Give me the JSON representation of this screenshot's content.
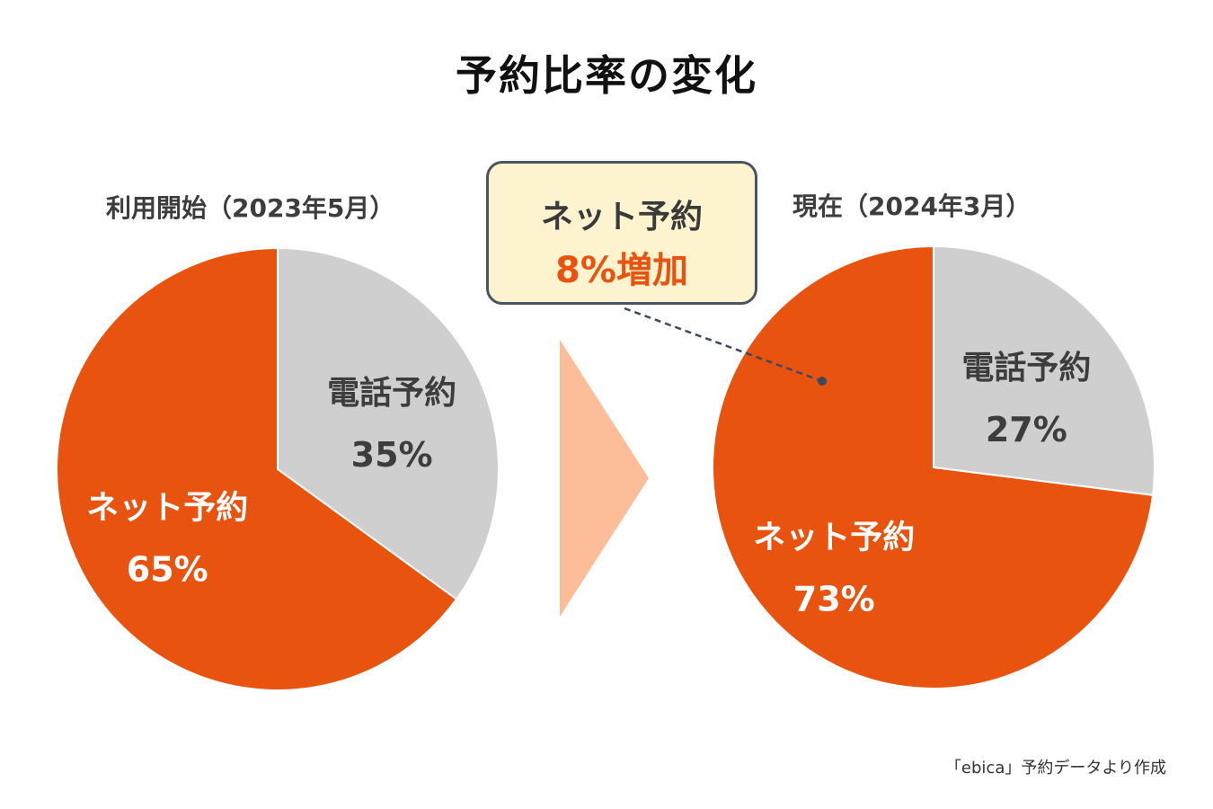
{
  "title": "予約比率の変化",
  "colors": {
    "net": "#e8540f",
    "phone": "#cfcfcf",
    "arrow": "#fdbd98",
    "callout_bg": "#fdf3cf"
  },
  "chart_data": [
    {
      "type": "pie",
      "title": "利用開始（2023年5月）",
      "slices": [
        {
          "label": "電話予約",
          "value": 35,
          "value_label": "35%",
          "color": "#cfcfcf"
        },
        {
          "label": "ネット予約",
          "value": 65,
          "value_label": "65%",
          "color": "#e8540f"
        }
      ]
    },
    {
      "type": "pie",
      "title": "現在（2024年3月）",
      "slices": [
        {
          "label": "電話予約",
          "value": 27,
          "value_label": "27%",
          "color": "#cfcfcf"
        },
        {
          "label": "ネット予約",
          "value": 73,
          "value_label": "73%",
          "color": "#e8540f"
        }
      ]
    }
  ],
  "callout": {
    "line1": "ネット予約",
    "line2": "8%増加"
  },
  "source": "「ebica」予約データより作成"
}
